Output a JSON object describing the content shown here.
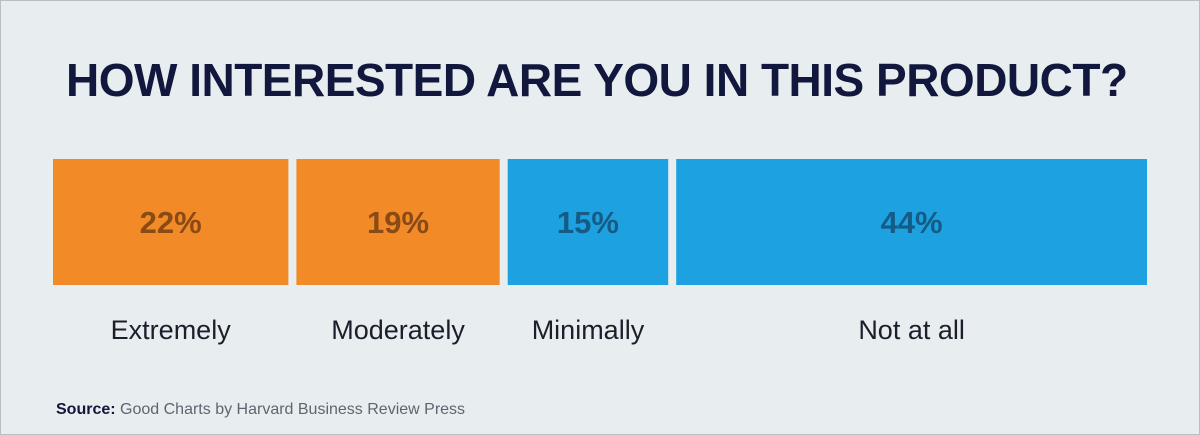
{
  "chart_data": {
    "type": "bar",
    "stacked": true,
    "orientation": "horizontal",
    "title": "HOW INTERESTED ARE YOU IN THIS PRODUCT?",
    "categories": [
      "Extremely",
      "Moderately",
      "Minimally",
      "Not at all"
    ],
    "values": [
      22,
      19,
      15,
      44
    ],
    "data_labels": [
      "22%",
      "19%",
      "15%",
      "44%"
    ],
    "unit": "%",
    "colors": [
      "#f28a28",
      "#f28a28",
      "#1da1e0",
      "#1da1e0"
    ],
    "label_colors": [
      "#8a4a15",
      "#8a4a15",
      "#145c85",
      "#145c85"
    ],
    "grid": false
  },
  "source": {
    "label": "Source:",
    "text": "Good Charts by Harvard Business Review Press"
  },
  "colors": {
    "background": "#e8edf0",
    "title": "#12173d"
  }
}
